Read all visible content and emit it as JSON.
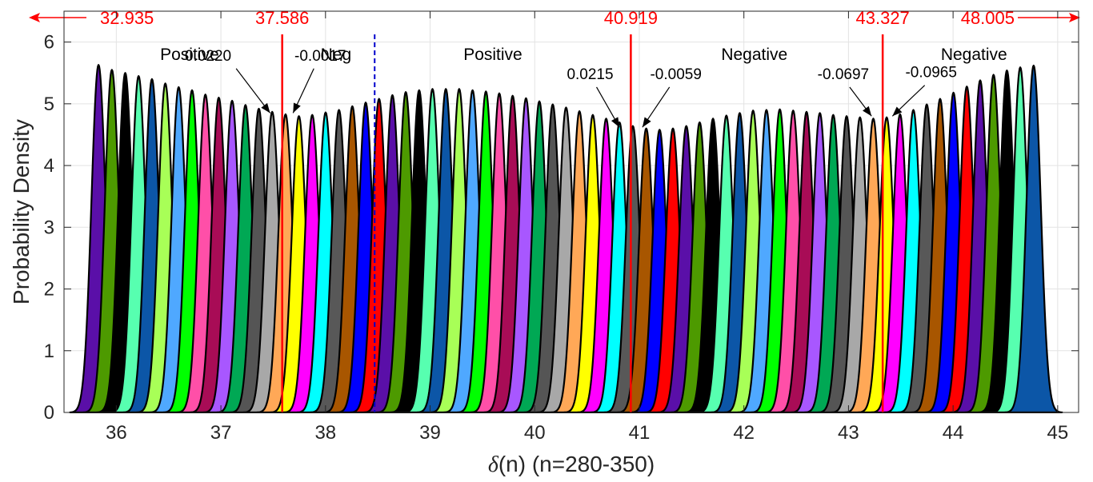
{
  "chart_data": {
    "type": "area",
    "xlabel_prefix": "δ",
    "xlabel_rest": "(n) (n=280-350)",
    "ylabel": "Probability Density",
    "xlim": [
      35.5,
      45.2
    ],
    "ylim": [
      0,
      6.5
    ],
    "x_ticks": [
      "36",
      "37",
      "38",
      "39",
      "40",
      "41",
      "42",
      "43",
      "44",
      "45"
    ],
    "y_ticks": [
      "0",
      "1",
      "2",
      "3",
      "4",
      "5",
      "6"
    ],
    "grid": true,
    "markers": [
      {
        "label": "32.935",
        "arrow": "left"
      },
      {
        "label": "37.586",
        "x": 37.586,
        "style": "solid"
      },
      {
        "label": "",
        "x": 38.47,
        "style": "dashed"
      },
      {
        "label": "40.919",
        "x": 40.919,
        "style": "solid"
      },
      {
        "label": "43.327",
        "x": 43.327,
        "style": "solid"
      },
      {
        "label": "48.005",
        "arrow": "right"
      }
    ],
    "regions": [
      {
        "label": "Positive",
        "x": 36.7
      },
      {
        "label": "Neg",
        "x": 38.1
      },
      {
        "label": "Positive",
        "x": 39.6
      },
      {
        "label": "Negative",
        "x": 42.1
      },
      {
        "label": "Negative",
        "x": 44.2
      }
    ],
    "annotations": [
      {
        "label": "0.0220",
        "text_x": 37.1,
        "text_y": 5.7,
        "tip_x": 37.47,
        "tip_y": 4.85,
        "anchor": "end"
      },
      {
        "label": "-0.0017",
        "text_x": 37.95,
        "text_y": 5.7,
        "tip_x": 37.69,
        "tip_y": 4.85,
        "anchor": "middle"
      },
      {
        "label": "0.0215",
        "text_x": 40.53,
        "text_y": 5.4,
        "tip_x": 40.81,
        "tip_y": 4.62,
        "anchor": "middle"
      },
      {
        "label": "-0.0059",
        "text_x": 41.35,
        "text_y": 5.4,
        "tip_x": 41.03,
        "tip_y": 4.62,
        "anchor": "middle"
      },
      {
        "label": "-0.0697",
        "text_x": 42.95,
        "text_y": 5.4,
        "tip_x": 43.22,
        "tip_y": 4.8,
        "anchor": "middle"
      },
      {
        "label": "-0.0965",
        "text_x": 43.79,
        "text_y": 5.43,
        "tip_x": 43.42,
        "tip_y": 4.8,
        "anchor": "middle"
      }
    ],
    "series": {
      "count": 71,
      "first_mean": 35.83,
      "last_mean": 44.77,
      "sigma": 0.068,
      "peaks": [
        5.63,
        5.55,
        5.5,
        5.45,
        5.4,
        5.33,
        5.27,
        5.22,
        5.15,
        5.1,
        5.05,
        4.98,
        4.92,
        4.87,
        4.83,
        4.8,
        4.82,
        4.86,
        4.9,
        4.96,
        5.02,
        5.08,
        5.14,
        5.19,
        5.22,
        5.24,
        5.24,
        5.24,
        5.22,
        5.2,
        5.17,
        5.13,
        5.09,
        5.04,
        4.99,
        4.94,
        4.88,
        4.82,
        4.76,
        4.7,
        4.64,
        4.6,
        4.58,
        4.6,
        4.64,
        4.7,
        4.76,
        4.81,
        4.85,
        4.89,
        4.9,
        4.91,
        4.89,
        4.87,
        4.85,
        4.82,
        4.8,
        4.78,
        4.76,
        4.78,
        4.83,
        4.9,
        4.99,
        5.08,
        5.18,
        5.28,
        5.38,
        5.47,
        5.54,
        5.59,
        5.62
      ],
      "colors": [
        "#5a0fa8",
        "#4d9a00",
        "#000000",
        "#57ffb0",
        "#0c56a7",
        "#a8ff57",
        "#4fa8ff",
        "#00ff00",
        "#ff4fa8",
        "#a80c56",
        "#a857ff",
        "#00a854",
        "#555555",
        "#a8a8a8",
        "#ffa857",
        "#ffff00",
        "#ff00ff",
        "#00ffff",
        "#585858",
        "#a85600",
        "#0000ff",
        "#ff0000"
      ]
    }
  }
}
